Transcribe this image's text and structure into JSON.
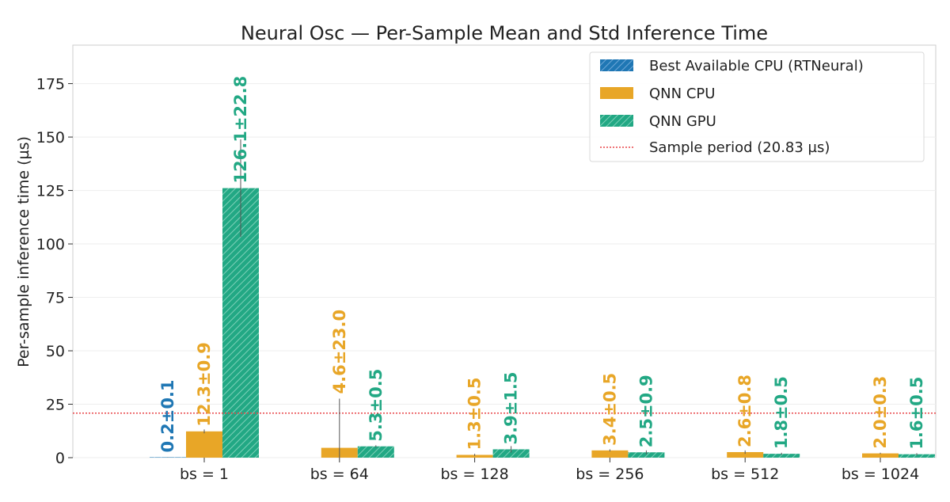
{
  "chart_data": {
    "type": "bar",
    "title": "Neural Osc — Per-Sample Mean and Std Inference Time",
    "xlabel": "",
    "ylabel": "Per-sample inference time (µs)",
    "ylim": [
      0,
      193
    ],
    "yticks": [
      0,
      25,
      50,
      75,
      100,
      125,
      150,
      175
    ],
    "grid": "horizontal",
    "legend_position": "top-right",
    "categories": [
      "bs = 1",
      "bs = 64",
      "bs = 128",
      "bs = 256",
      "bs = 512",
      "bs = 1024"
    ],
    "series": [
      {
        "name": "Best Available CPU (RTNeural)",
        "color": "#1f77b4",
        "pattern": "hatched",
        "values": [
          0.2,
          null,
          null,
          null,
          null,
          null
        ],
        "errors": [
          0.1,
          null,
          null,
          null,
          null,
          null
        ],
        "labels": [
          "0.2±0.1",
          null,
          null,
          null,
          null,
          null
        ]
      },
      {
        "name": "QNN CPU",
        "color": "#e8a627",
        "pattern": "solid",
        "values": [
          12.3,
          4.6,
          1.3,
          3.4,
          2.6,
          2.0
        ],
        "errors": [
          0.9,
          23.0,
          0.5,
          0.5,
          0.8,
          0.3
        ],
        "labels": [
          "12.3±0.9",
          "4.6±23.0",
          "1.3±0.5",
          "3.4±0.5",
          "2.6±0.8",
          "2.0±0.3"
        ]
      },
      {
        "name": "QNN GPU",
        "color": "#22a884",
        "pattern": "hatched",
        "values": [
          126.1,
          5.3,
          3.9,
          2.5,
          1.8,
          1.6
        ],
        "errors": [
          22.8,
          0.5,
          1.5,
          0.9,
          0.5,
          0.5
        ],
        "labels": [
          "126.1±22.8",
          "5.3±0.5",
          "3.9±1.5",
          "2.5±0.9",
          "1.8±0.5",
          "1.6±0.5"
        ]
      }
    ],
    "reference_line": {
      "name": "Sample period (20.83 µs)",
      "value": 20.83,
      "color": "#e8474a",
      "style": "dotted"
    }
  }
}
